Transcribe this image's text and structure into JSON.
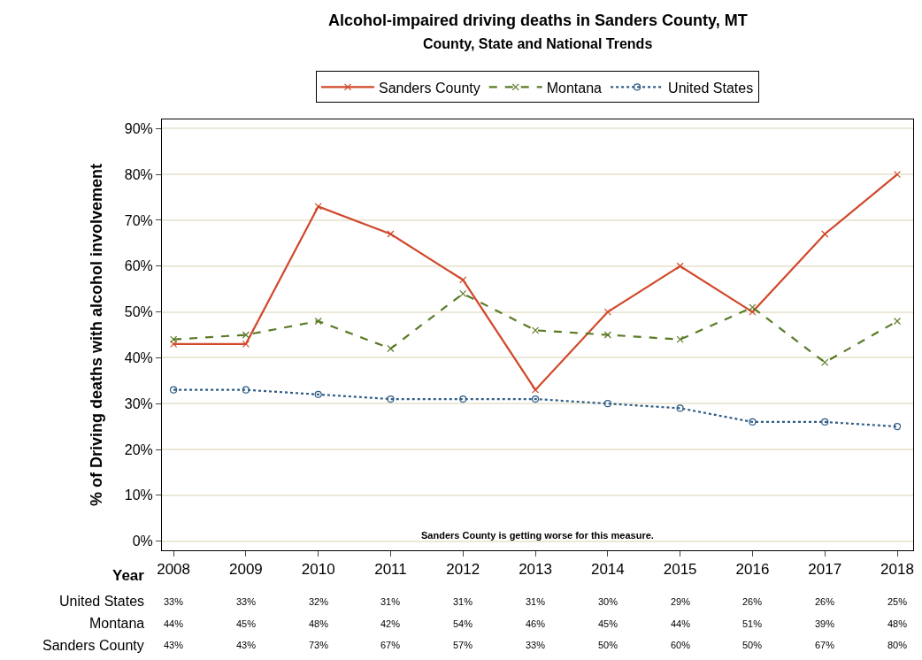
{
  "chart_data": {
    "type": "line",
    "title": "Alcohol-impaired driving deaths in Sanders County, MT",
    "subtitle": "County, State and National Trends",
    "xlabel": "Year",
    "ylabel": "% of Driving deaths with alcohol involvement",
    "categories": [
      "2008",
      "2009",
      "2010",
      "2011",
      "2012",
      "2013",
      "2014",
      "2015",
      "2016",
      "2017",
      "2018"
    ],
    "series": [
      {
        "name": "Sanders County",
        "color": "#d0482a",
        "line_style": "solid",
        "marker": "cross",
        "values": [
          43,
          43,
          73,
          67,
          57,
          33,
          50,
          60,
          50,
          67,
          80
        ],
        "value_labels": [
          "43%",
          "43%",
          "73%",
          "67%",
          "57%",
          "33%",
          "50%",
          "60%",
          "50%",
          "67%",
          "80%"
        ]
      },
      {
        "name": "Montana",
        "color": "#5b7a26",
        "line_style": "dashed",
        "marker": "cross",
        "values": [
          44,
          45,
          48,
          42,
          54,
          46,
          45,
          44,
          51,
          39,
          48
        ],
        "value_labels": [
          "44%",
          "45%",
          "48%",
          "42%",
          "54%",
          "46%",
          "45%",
          "44%",
          "51%",
          "39%",
          "48%"
        ]
      },
      {
        "name": "United States",
        "color": "#2e5c86",
        "line_style": "dotted",
        "marker": "circle",
        "values": [
          33,
          33,
          32,
          31,
          31,
          31,
          30,
          29,
          26,
          26,
          25
        ],
        "value_labels": [
          "33%",
          "33%",
          "32%",
          "31%",
          "31%",
          "31%",
          "30%",
          "29%",
          "26%",
          "26%",
          "25%"
        ]
      }
    ],
    "ylim": [
      -2,
      92
    ],
    "yticks": [
      {
        "value": 0,
        "label": "0%"
      },
      {
        "value": 10,
        "label": "10%"
      },
      {
        "value": 20,
        "label": "20%"
      },
      {
        "value": 30,
        "label": "30%"
      },
      {
        "value": 40,
        "label": "40%"
      },
      {
        "value": 50,
        "label": "50%"
      },
      {
        "value": 60,
        "label": "60%"
      },
      {
        "value": 70,
        "label": "70%"
      },
      {
        "value": 80,
        "label": "80%"
      },
      {
        "value": 90,
        "label": "90%"
      }
    ],
    "grid": "y",
    "legend": "top",
    "annotations": [
      "Sanders County is getting worse for this measure."
    ]
  }
}
